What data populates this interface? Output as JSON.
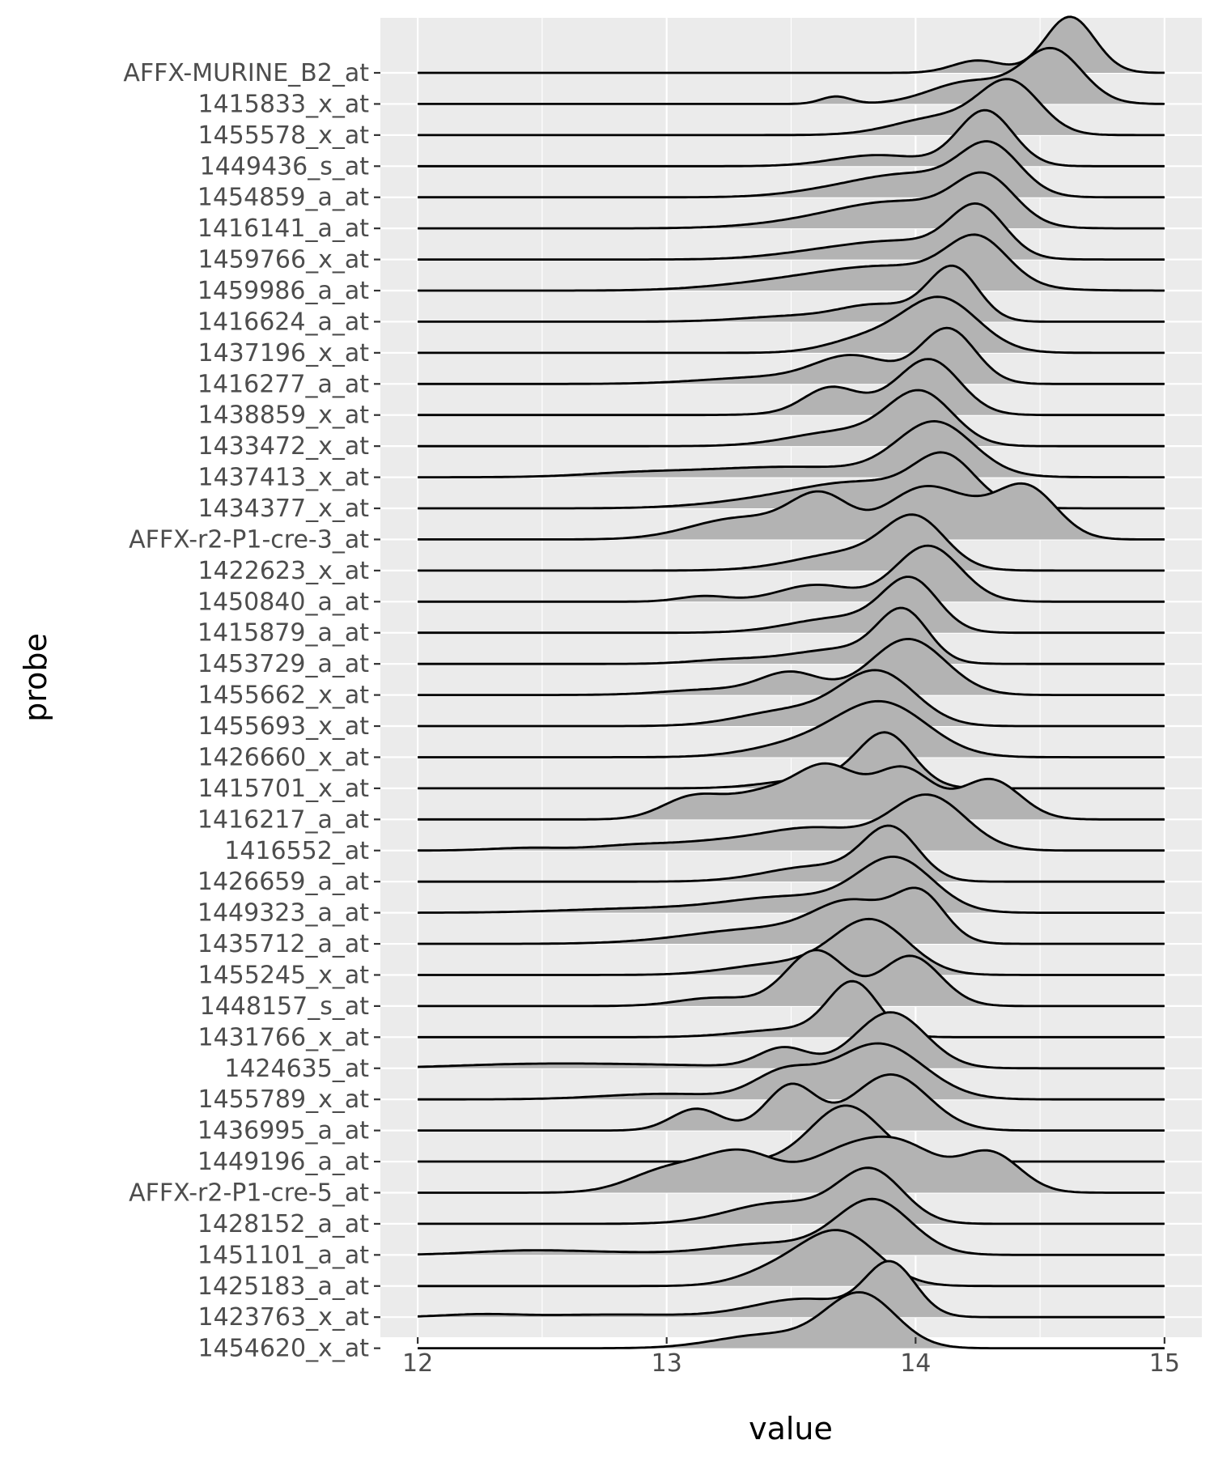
{
  "chart_data": {
    "type": "ridgeline",
    "title": "",
    "xlabel": "value",
    "ylabel": "probe",
    "xlim": [
      11.85,
      15.15
    ],
    "x_ticks": [
      12,
      13,
      14,
      15
    ],
    "grid": true,
    "panel_background": "#ebebeb",
    "fill_color": "#b3b3b3",
    "line_color": "#000000",
    "x_range": [
      12,
      15
    ],
    "ridge_scale": 2.0,
    "categories": [
      "AFFX-MURINE_B2_at",
      "1415833_x_at",
      "1455578_x_at",
      "1449436_s_at",
      "1454859_a_at",
      "1416141_a_at",
      "1459766_x_at",
      "1459986_a_at",
      "1416624_a_at",
      "1437196_x_at",
      "1416277_a_at",
      "1438859_x_at",
      "1433472_x_at",
      "1437413_x_at",
      "1434377_x_at",
      "AFFX-r2-P1-cre-3_at",
      "1422623_x_at",
      "1450840_a_at",
      "1415879_a_at",
      "1453729_a_at",
      "1455662_x_at",
      "1455693_x_at",
      "1426660_x_at",
      "1415701_x_at",
      "1416217_a_at",
      "1416552_at",
      "1426659_a_at",
      "1449323_a_at",
      "1435712_a_at",
      "1455245_x_at",
      "1448157_s_at",
      "1431766_x_at",
      "1424635_at",
      "1455789_x_at",
      "1436995_a_at",
      "1449196_a_at",
      "AFFX-r2-P1-cre-5_at",
      "1428152_a_at",
      "1451101_a_at",
      "1425183_a_at",
      "1423763_x_at",
      "1454620_x_at"
    ],
    "series": [
      {
        "components": [
          [
            14.62,
            0.1,
            1.0
          ],
          [
            14.25,
            0.1,
            0.22
          ]
        ]
      },
      {
        "components": [
          [
            14.55,
            0.12,
            1.0
          ],
          [
            14.22,
            0.16,
            0.42
          ],
          [
            13.68,
            0.06,
            0.14
          ]
        ]
      },
      {
        "components": [
          [
            14.38,
            0.12,
            1.0
          ],
          [
            14.1,
            0.18,
            0.35
          ]
        ]
      },
      {
        "components": [
          [
            14.28,
            0.11,
            1.0
          ],
          [
            13.85,
            0.18,
            0.2
          ]
        ]
      },
      {
        "components": [
          [
            14.3,
            0.12,
            1.0
          ],
          [
            14.0,
            0.2,
            0.42
          ],
          [
            13.7,
            0.2,
            0.15
          ]
        ]
      },
      {
        "components": [
          [
            14.28,
            0.12,
            1.0
          ],
          [
            13.95,
            0.25,
            0.55
          ],
          [
            13.6,
            0.25,
            0.12
          ]
        ]
      },
      {
        "components": [
          [
            14.25,
            0.11,
            1.0
          ],
          [
            13.95,
            0.22,
            0.35
          ],
          [
            13.6,
            0.2,
            0.12
          ]
        ]
      },
      {
        "components": [
          [
            14.25,
            0.12,
            1.0
          ],
          [
            13.9,
            0.3,
            0.55
          ],
          [
            13.4,
            0.25,
            0.12
          ]
        ]
      },
      {
        "components": [
          [
            14.15,
            0.1,
            1.0
          ],
          [
            13.85,
            0.15,
            0.3
          ],
          [
            13.5,
            0.2,
            0.1
          ]
        ]
      },
      {
        "components": [
          [
            14.1,
            0.15,
            1.0
          ],
          [
            13.8,
            0.15,
            0.25
          ]
        ]
      },
      {
        "components": [
          [
            14.13,
            0.11,
            1.0
          ],
          [
            13.75,
            0.15,
            0.48
          ],
          [
            13.4,
            0.25,
            0.12
          ]
        ]
      },
      {
        "components": [
          [
            14.06,
            0.12,
            1.0
          ],
          [
            13.65,
            0.1,
            0.38
          ],
          [
            13.8,
            0.2,
            0.22
          ]
        ]
      },
      {
        "components": [
          [
            14.02,
            0.13,
            1.0
          ],
          [
            13.7,
            0.2,
            0.28
          ]
        ]
      },
      {
        "components": [
          [
            14.08,
            0.15,
            1.0
          ],
          [
            13.5,
            0.4,
            0.2
          ],
          [
            12.85,
            0.2,
            0.05
          ]
        ]
      },
      {
        "components": [
          [
            14.12,
            0.12,
            1.0
          ],
          [
            13.8,
            0.25,
            0.55
          ],
          [
            13.4,
            0.25,
            0.15
          ]
        ]
      },
      {
        "components": [
          [
            14.0,
            0.14,
            0.42
          ],
          [
            14.45,
            0.12,
            0.5
          ],
          [
            13.62,
            0.12,
            0.42
          ],
          [
            13.3,
            0.2,
            0.22
          ],
          [
            14.2,
            0.15,
            0.25
          ]
        ]
      },
      {
        "components": [
          [
            14.0,
            0.12,
            1.0
          ],
          [
            13.75,
            0.22,
            0.4
          ]
        ]
      },
      {
        "components": [
          [
            14.05,
            0.13,
            1.0
          ],
          [
            13.6,
            0.15,
            0.3
          ],
          [
            13.15,
            0.1,
            0.1
          ]
        ]
      },
      {
        "components": [
          [
            13.98,
            0.11,
            1.0
          ],
          [
            13.7,
            0.2,
            0.3
          ]
        ]
      },
      {
        "components": [
          [
            13.95,
            0.1,
            1.0
          ],
          [
            13.7,
            0.2,
            0.3
          ],
          [
            13.25,
            0.15,
            0.08
          ]
        ]
      },
      {
        "components": [
          [
            13.97,
            0.15,
            1.0
          ],
          [
            13.5,
            0.12,
            0.38
          ],
          [
            13.2,
            0.2,
            0.1
          ]
        ]
      },
      {
        "components": [
          [
            13.85,
            0.15,
            1.0
          ],
          [
            13.5,
            0.2,
            0.3
          ]
        ]
      },
      {
        "components": [
          [
            13.87,
            0.18,
            1.0
          ],
          [
            13.55,
            0.2,
            0.25
          ]
        ]
      },
      {
        "components": [
          [
            13.88,
            0.11,
            1.0
          ],
          [
            13.6,
            0.18,
            0.18
          ]
        ]
      },
      {
        "components": [
          [
            13.95,
            0.12,
            0.48
          ],
          [
            13.65,
            0.12,
            0.45
          ],
          [
            14.3,
            0.12,
            0.38
          ],
          [
            13.4,
            0.15,
            0.25
          ],
          [
            13.1,
            0.12,
            0.2
          ]
        ]
      },
      {
        "components": [
          [
            14.05,
            0.15,
            1.0
          ],
          [
            13.6,
            0.2,
            0.4
          ],
          [
            13.2,
            0.2,
            0.15
          ],
          [
            12.85,
            0.15,
            0.08
          ],
          [
            12.45,
            0.15,
            0.05
          ]
        ]
      },
      {
        "components": [
          [
            13.9,
            0.11,
            1.0
          ],
          [
            13.6,
            0.2,
            0.3
          ]
        ]
      },
      {
        "components": [
          [
            13.92,
            0.15,
            1.0
          ],
          [
            13.5,
            0.25,
            0.3
          ],
          [
            12.9,
            0.3,
            0.08
          ]
        ]
      },
      {
        "components": [
          [
            14.02,
            0.1,
            0.9
          ],
          [
            13.75,
            0.15,
            0.7
          ],
          [
            13.4,
            0.3,
            0.3
          ]
        ]
      },
      {
        "components": [
          [
            13.82,
            0.15,
            1.0
          ],
          [
            13.45,
            0.2,
            0.2
          ]
        ]
      },
      {
        "components": [
          [
            13.6,
            0.12,
            1.0
          ],
          [
            13.98,
            0.12,
            0.9
          ],
          [
            13.2,
            0.15,
            0.15
          ]
        ]
      },
      {
        "components": [
          [
            13.75,
            0.1,
            1.0
          ],
          [
            13.5,
            0.2,
            0.15
          ]
        ]
      },
      {
        "components": [
          [
            13.9,
            0.14,
            1.0
          ],
          [
            13.47,
            0.1,
            0.35
          ],
          [
            12.9,
            0.4,
            0.06
          ],
          [
            12.4,
            0.3,
            0.05
          ]
        ]
      },
      {
        "components": [
          [
            13.85,
            0.18,
            1.0
          ],
          [
            13.47,
            0.12,
            0.45
          ],
          [
            13.0,
            0.25,
            0.1
          ]
        ]
      },
      {
        "components": [
          [
            13.9,
            0.15,
            0.72
          ],
          [
            13.5,
            0.1,
            0.58
          ],
          [
            13.12,
            0.1,
            0.28
          ]
        ]
      },
      {
        "components": [
          [
            13.72,
            0.14,
            1.0
          ]
        ]
      },
      {
        "components": [
          [
            13.95,
            0.15,
            0.5
          ],
          [
            14.3,
            0.12,
            0.45
          ],
          [
            13.7,
            0.15,
            0.4
          ],
          [
            13.3,
            0.15,
            0.45
          ],
          [
            13.0,
            0.15,
            0.25
          ]
        ]
      },
      {
        "components": [
          [
            13.82,
            0.13,
            1.0
          ],
          [
            13.45,
            0.2,
            0.4
          ]
        ]
      },
      {
        "components": [
          [
            13.83,
            0.15,
            1.0
          ],
          [
            13.4,
            0.2,
            0.2
          ],
          [
            12.7,
            0.3,
            0.05
          ],
          [
            12.4,
            0.2,
            0.05
          ]
        ]
      },
      {
        "components": [
          [
            13.7,
            0.15,
            1.0
          ],
          [
            13.45,
            0.15,
            0.3
          ]
        ]
      },
      {
        "components": [
          [
            13.9,
            0.1,
            1.0
          ],
          [
            13.55,
            0.2,
            0.35
          ],
          [
            12.25,
            0.15,
            0.05
          ],
          [
            12.8,
            0.3,
            0.05
          ]
        ]
      },
      {
        "components": [
          [
            13.78,
            0.14,
            1.0
          ],
          [
            13.4,
            0.2,
            0.25
          ]
        ]
      }
    ]
  }
}
